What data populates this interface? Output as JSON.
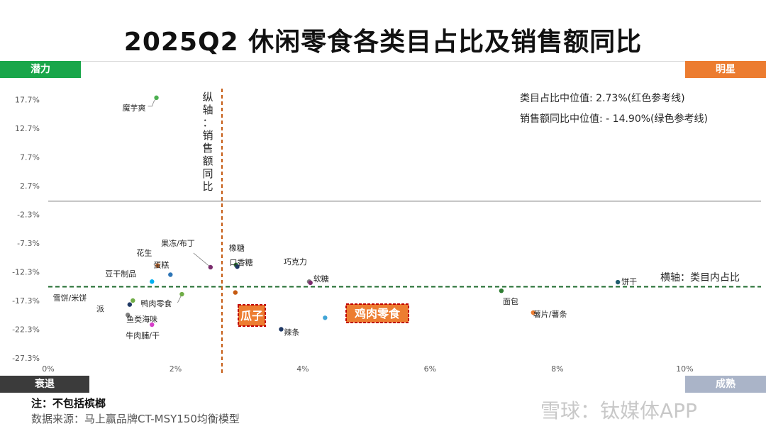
{
  "title": "2025Q2 休闲零食各类目占比及销售额同比",
  "quadrants": {
    "potential": "潜力",
    "star": "明星",
    "decline": "衰退",
    "mature": "成熟"
  },
  "legend_text": {
    "share_median": "类目占比中位值:   2.73%(红色参考线)",
    "growth_median": "销售额同比中位值:  - 14.90%(绿色参考线)"
  },
  "vertical_axis_label": "纵轴：销售额同比",
  "horizontal_axis_label": "横轴：类目内占比",
  "note": "注：不包括槟榔",
  "source": "数据来源：马上赢品牌CT-MSY150均衡模型",
  "watermark": "雪球：钛媒体APP",
  "colors": {
    "median_share_line": "#c55a11",
    "median_growth_line": "#1e6b2e",
    "zero_line": "#a6a6a6"
  },
  "chart_data": {
    "type": "scatter",
    "x_unit": "%",
    "y_unit": "%",
    "xlim": [
      0,
      11.2
    ],
    "ylim": [
      -27.3,
      20.7
    ],
    "x_ticks": [
      0,
      2,
      4,
      6,
      8,
      10
    ],
    "x_tick_labels": [
      "0%",
      "2%",
      "4%",
      "6%",
      "8%",
      "10%"
    ],
    "y_ticks": [
      17.7,
      12.7,
      7.7,
      2.7,
      -2.3,
      -7.3,
      -12.3,
      -17.3,
      -22.3,
      -27.3
    ],
    "y_tick_labels": [
      "17.7%",
      "12.7%",
      "7.7%",
      "2.7%",
      "-2.3%",
      "-7.3%",
      "-12.3%",
      "-17.3%",
      "-22.3%",
      "-27.3%"
    ],
    "reference_lines": {
      "x_median": 2.73,
      "y_median": -14.9,
      "y_zero": 0
    },
    "highlighted": [
      "瓜子",
      "鸡肉零食"
    ],
    "points": [
      {
        "name": "魔芋爽",
        "x": 1.7,
        "y": 18.0,
        "color": "#4caf50"
      },
      {
        "name": "果冻/布丁",
        "x": 2.55,
        "y": -11.5,
        "color": "#7b2d6e"
      },
      {
        "name": "花生",
        "x": 1.72,
        "y": -11.2,
        "color": "#ed7d31"
      },
      {
        "name": "蛋糕",
        "x": 1.92,
        "y": -12.8,
        "color": "#2e75b6"
      },
      {
        "name": "豆干制品",
        "x": 1.63,
        "y": -14.0,
        "color": "#00b0f0"
      },
      {
        "name": "鸭肉零食",
        "x": 2.1,
        "y": -16.2,
        "color": "#70ad47"
      },
      {
        "name": "雪饼/米饼",
        "x": 1.33,
        "y": -17.3,
        "color": "#70ad47"
      },
      {
        "name": "派",
        "x": 1.28,
        "y": -18.0,
        "color": "#1f3864"
      },
      {
        "name": "鱼类海味",
        "x": 1.25,
        "y": -19.8,
        "color": "#7f7f7f"
      },
      {
        "name": "牛肉脯/干",
        "x": 1.63,
        "y": -21.5,
        "color": "#d63ec9"
      },
      {
        "name": "橡糖",
        "x": 2.95,
        "y": -11.1,
        "color": "#2e7d32"
      },
      {
        "name": "口香糖",
        "x": 2.97,
        "y": -11.4,
        "color": "#1f3864"
      },
      {
        "name": "瓜子",
        "x": 2.94,
        "y": -15.9,
        "color": "#c55a11"
      },
      {
        "name": "巧克力",
        "x": 4.1,
        "y": -14.0,
        "color": "#7f7f7f"
      },
      {
        "name": "软糖",
        "x": 4.12,
        "y": -14.2,
        "color": "#7b2d6e"
      },
      {
        "name": "辣条",
        "x": 3.66,
        "y": -22.3,
        "color": "#1f3864"
      },
      {
        "name": "鸡肉零食",
        "x": 4.35,
        "y": -20.3,
        "color": "#41a5d6"
      },
      {
        "name": "面包",
        "x": 7.12,
        "y": -15.6,
        "color": "#2e7d32"
      },
      {
        "name": "薯片/薯条",
        "x": 7.62,
        "y": -19.4,
        "color": "#ed7d31"
      },
      {
        "name": "饼干",
        "x": 8.95,
        "y": -14.1,
        "color": "#1f5d6e"
      }
    ]
  }
}
